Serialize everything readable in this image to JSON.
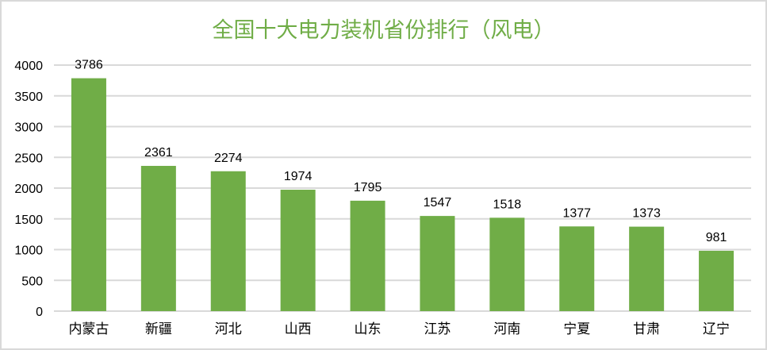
{
  "chart_data": {
    "type": "bar",
    "title": "全国十大电力装机省份排行（风电）",
    "categories": [
      "内蒙古",
      "新疆",
      "河北",
      "山西",
      "山东",
      "江苏",
      "河南",
      "宁夏",
      "甘肃",
      "辽宁"
    ],
    "values": [
      3786,
      2361,
      2274,
      1974,
      1795,
      1547,
      1518,
      1377,
      1373,
      981
    ],
    "xlabel": "",
    "ylabel": "",
    "ylim": [
      0,
      4000
    ],
    "yticks": [
      0,
      500,
      1000,
      1500,
      2000,
      2500,
      3000,
      3500,
      4000
    ],
    "grid": true,
    "legend": "none",
    "data_labels": true,
    "bar_color": "#70ad47",
    "title_color": "#70ad47"
  }
}
